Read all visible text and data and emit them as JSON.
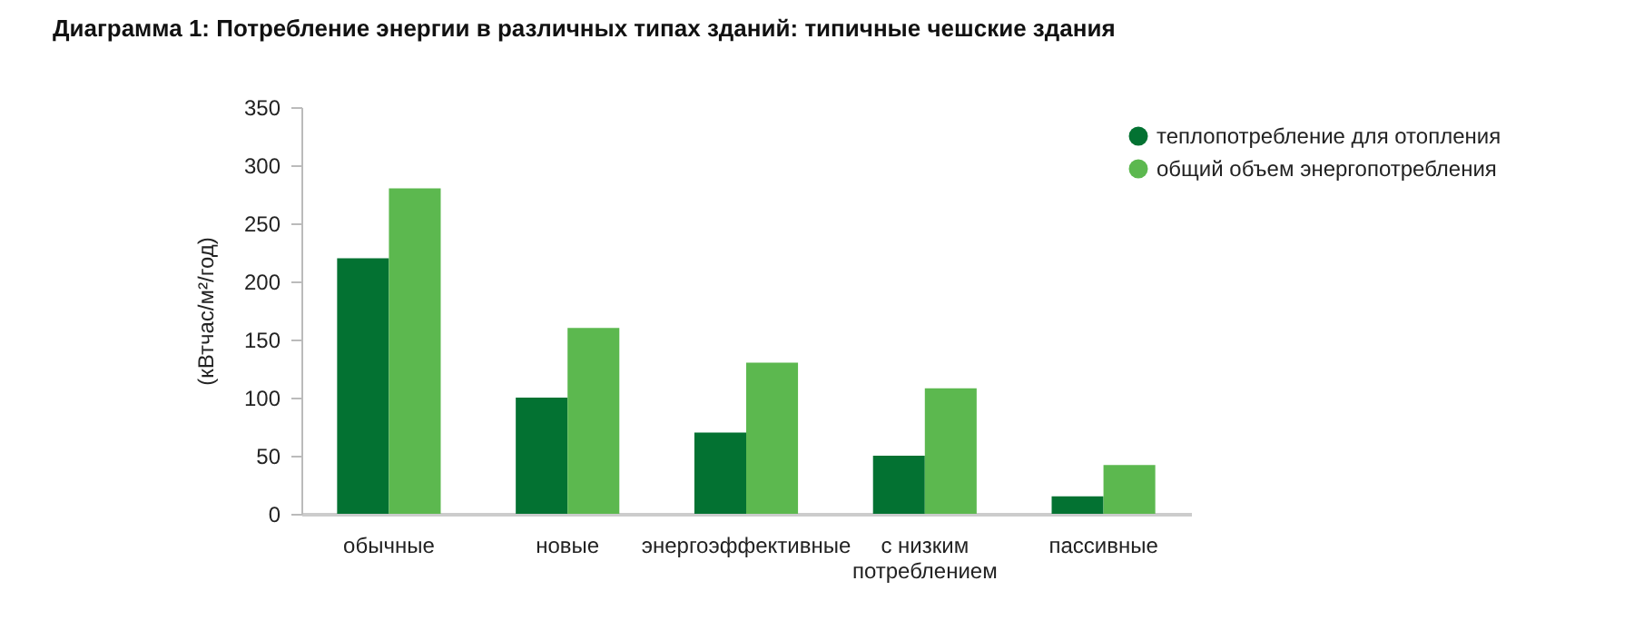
{
  "chart_data": {
    "type": "bar",
    "title": "Диаграмма 1: Потребление энергии в различных типах зданий: типичные чешские здания",
    "ylabel": "(кВтчас/м²/год)",
    "categories": [
      "обычные",
      "новые",
      "энергоэффективные",
      "с низким потреблением",
      "пассивные"
    ],
    "series": [
      {
        "name": "теплопотребление для отопления",
        "color": "#037232",
        "values": [
          220,
          100,
          70,
          50,
          15
        ]
      },
      {
        "name": "общий объем энергопотребления",
        "color": "#5cb84f",
        "values": [
          280,
          160,
          130,
          108,
          42
        ]
      }
    ],
    "ylim": [
      0,
      350
    ],
    "yticks": [
      0,
      50,
      100,
      150,
      200,
      250,
      300,
      350
    ],
    "grid": false,
    "legend": "top right"
  }
}
